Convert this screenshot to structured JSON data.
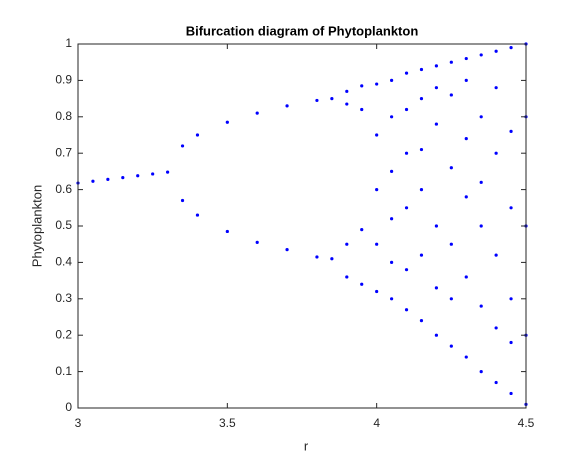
{
  "chart_data": {
    "type": "scatter",
    "title": "Bifurcation diagram of Phytoplankton",
    "xlabel": "r",
    "ylabel": "Phytoplankton",
    "color": "#0000ff",
    "x": [
      3,
      3.05,
      3.1,
      3.15,
      3.2,
      3.25,
      3.3,
      3.35,
      3.4,
      3.5,
      3.6,
      3.7,
      3.8,
      3.85,
      3.35,
      3.4,
      3.5,
      3.6,
      3.7,
      3.8,
      3.85,
      3.9,
      3.9,
      3.9,
      3.9,
      3.95,
      3.95,
      3.95,
      3.95,
      4,
      4,
      4,
      4,
      4,
      4.05,
      4.05,
      4.05,
      4.05,
      4.05,
      4.05,
      4.1,
      4.1,
      4.1,
      4.1,
      4.1,
      4.1,
      4.15,
      4.15,
      4.15,
      4.15,
      4.15,
      4.15,
      4.2,
      4.2,
      4.2,
      4.2,
      4.2,
      4.2,
      4.25,
      4.25,
      4.25,
      4.25,
      4.25,
      4.25,
      4.3,
      4.3,
      4.3,
      4.3,
      4.3,
      4.3,
      4.35,
      4.35,
      4.35,
      4.35,
      4.35,
      4.35,
      4.4,
      4.4,
      4.4,
      4.4,
      4.4,
      4.4,
      4.45,
      4.45,
      4.45,
      4.45,
      4.45,
      4.45,
      4.5,
      4.5,
      4.5,
      4.5,
      4.5
    ],
    "values": [
      0.618,
      0.623,
      0.628,
      0.633,
      0.638,
      0.643,
      0.648,
      0.72,
      0.75,
      0.785,
      0.81,
      0.83,
      0.845,
      0.85,
      0.57,
      0.53,
      0.485,
      0.455,
      0.435,
      0.415,
      0.41,
      0.87,
      0.835,
      0.45,
      0.36,
      0.885,
      0.82,
      0.49,
      0.34,
      0.89,
      0.75,
      0.6,
      0.45,
      0.32,
      0.9,
      0.8,
      0.52,
      0.4,
      0.3,
      0.65,
      0.92,
      0.7,
      0.55,
      0.38,
      0.27,
      0.82,
      0.93,
      0.85,
      0.6,
      0.42,
      0.24,
      0.71,
      0.94,
      0.78,
      0.5,
      0.33,
      0.2,
      0.88,
      0.95,
      0.66,
      0.45,
      0.3,
      0.17,
      0.86,
      0.96,
      0.74,
      0.58,
      0.36,
      0.14,
      0.9,
      0.97,
      0.8,
      0.5,
      0.28,
      0.1,
      0.62,
      0.98,
      0.7,
      0.42,
      0.22,
      0.07,
      0.88,
      0.99,
      0.76,
      0.55,
      0.3,
      0.04,
      0.18,
      1,
      0.8,
      0.5,
      0.2,
      0.01
    ],
    "xlim": [
      3,
      4.5
    ],
    "xticks": [
      3,
      3.5,
      4,
      4.5
    ],
    "ylim": [
      0,
      1
    ],
    "yticks": [
      0,
      0.1,
      0.2,
      0.3,
      0.4,
      0.5,
      0.6,
      0.7,
      0.8,
      0.9,
      1
    ],
    "grid": false
  }
}
